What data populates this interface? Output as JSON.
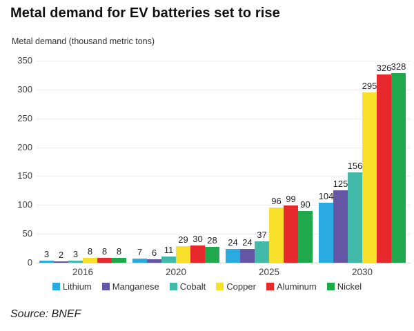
{
  "title": "Metal demand for EV batteries set to rise",
  "source": "Source: BNEF",
  "chart_data": {
    "type": "bar",
    "title": "Metal demand for EV batteries set to rise",
    "ylabel": "Metal demand (thousand metric tons)",
    "xlabel": "",
    "categories": [
      "2016",
      "2020",
      "2025",
      "2030"
    ],
    "series": [
      {
        "name": "Lithium",
        "color": "#29ABE2",
        "values": [
          3,
          7,
          24,
          104
        ]
      },
      {
        "name": "Manganese",
        "color": "#6456A5",
        "values": [
          2,
          6,
          24,
          125
        ]
      },
      {
        "name": "Cobalt",
        "color": "#43B9A9",
        "values": [
          3,
          11,
          37,
          156
        ]
      },
      {
        "name": "Copper",
        "color": "#F9E12B",
        "values": [
          8,
          29,
          96,
          295
        ]
      },
      {
        "name": "Aluminum",
        "color": "#E7292D",
        "values": [
          8,
          30,
          99,
          326
        ]
      },
      {
        "name": "Nickel",
        "color": "#1FA94C",
        "values": [
          8,
          28,
          90,
          328
        ]
      }
    ],
    "yticks": [
      0,
      50,
      100,
      150,
      200,
      250,
      300,
      350
    ],
    "ylim": [
      0,
      350
    ],
    "grid": true,
    "legend_position": "bottom",
    "data_labels": true
  }
}
